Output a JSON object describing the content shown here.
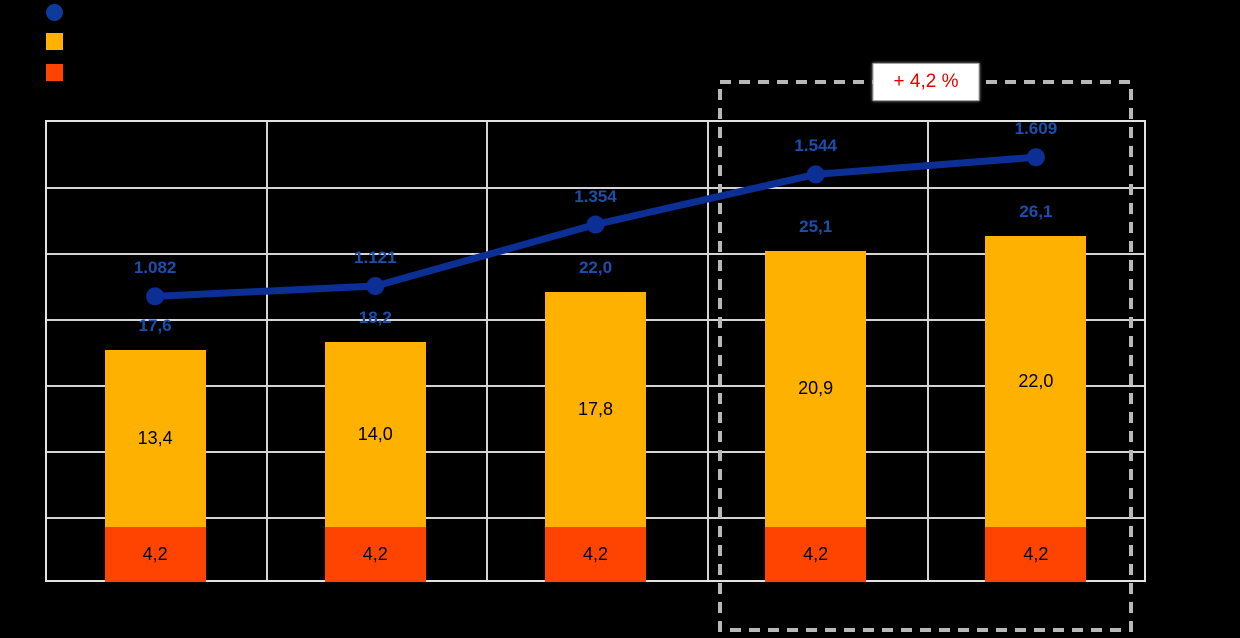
{
  "canvas": {
    "background": "#000000"
  },
  "legend": {
    "items": [
      {
        "name": "line-series-marker",
        "marker": "circle",
        "color": "#0D3A9B"
      },
      {
        "name": "yellow-series-marker",
        "marker": "square",
        "color": "#FFB100"
      },
      {
        "name": "orange-series-marker",
        "marker": "square",
        "color": "#FF4300"
      }
    ]
  },
  "chart_data": {
    "type": "bar",
    "subtype": "stacked-bar-with-secondary-axis-line",
    "categories": [
      "",
      "",
      "",
      "",
      ""
    ],
    "series": [
      {
        "name": "orange-base-bar",
        "type": "bar",
        "color": "#FF4300",
        "values": [
          4.2,
          4.2,
          4.2,
          4.2,
          4.2
        ],
        "labels": [
          "4,2",
          "4,2",
          "4,2",
          "4,2",
          "4,2"
        ],
        "label_color": "#000000"
      },
      {
        "name": "yellow-upper-bar",
        "type": "bar",
        "color": "#FFB100",
        "values": [
          13.4,
          14.0,
          17.8,
          20.9,
          22.0
        ],
        "labels": [
          "13,4",
          "14,0",
          "17,8",
          "20,9",
          "22,0"
        ],
        "label_color": "#000000"
      },
      {
        "name": "blue-line",
        "type": "line",
        "axis": "secondary",
        "color": "#0B2F94",
        "marker": "circle",
        "values": [
          1082,
          1121,
          1354,
          1544,
          1609
        ],
        "labels": [
          "1.082",
          "1.121",
          "1.354",
          "1.544",
          "1.609"
        ],
        "label_color": "#1C4EAE"
      }
    ],
    "stack_total_labels": {
      "values": [
        17.6,
        18.2,
        22.0,
        25.1,
        26.1
      ],
      "labels": [
        "17,6",
        "18,2",
        "22,0",
        "25,1",
        "26,1"
      ],
      "color": "#1C4EAE"
    },
    "ylim": [
      0,
      35
    ],
    "y_step": 5,
    "y2lim": [
      0,
      1750
    ],
    "y2_step": 250,
    "grid": true,
    "gridline_color": "#D4D4D4",
    "annotation": {
      "text": "+ 4,2 %",
      "text_color": "#E80000",
      "covers_last_n_categories": 2
    }
  }
}
